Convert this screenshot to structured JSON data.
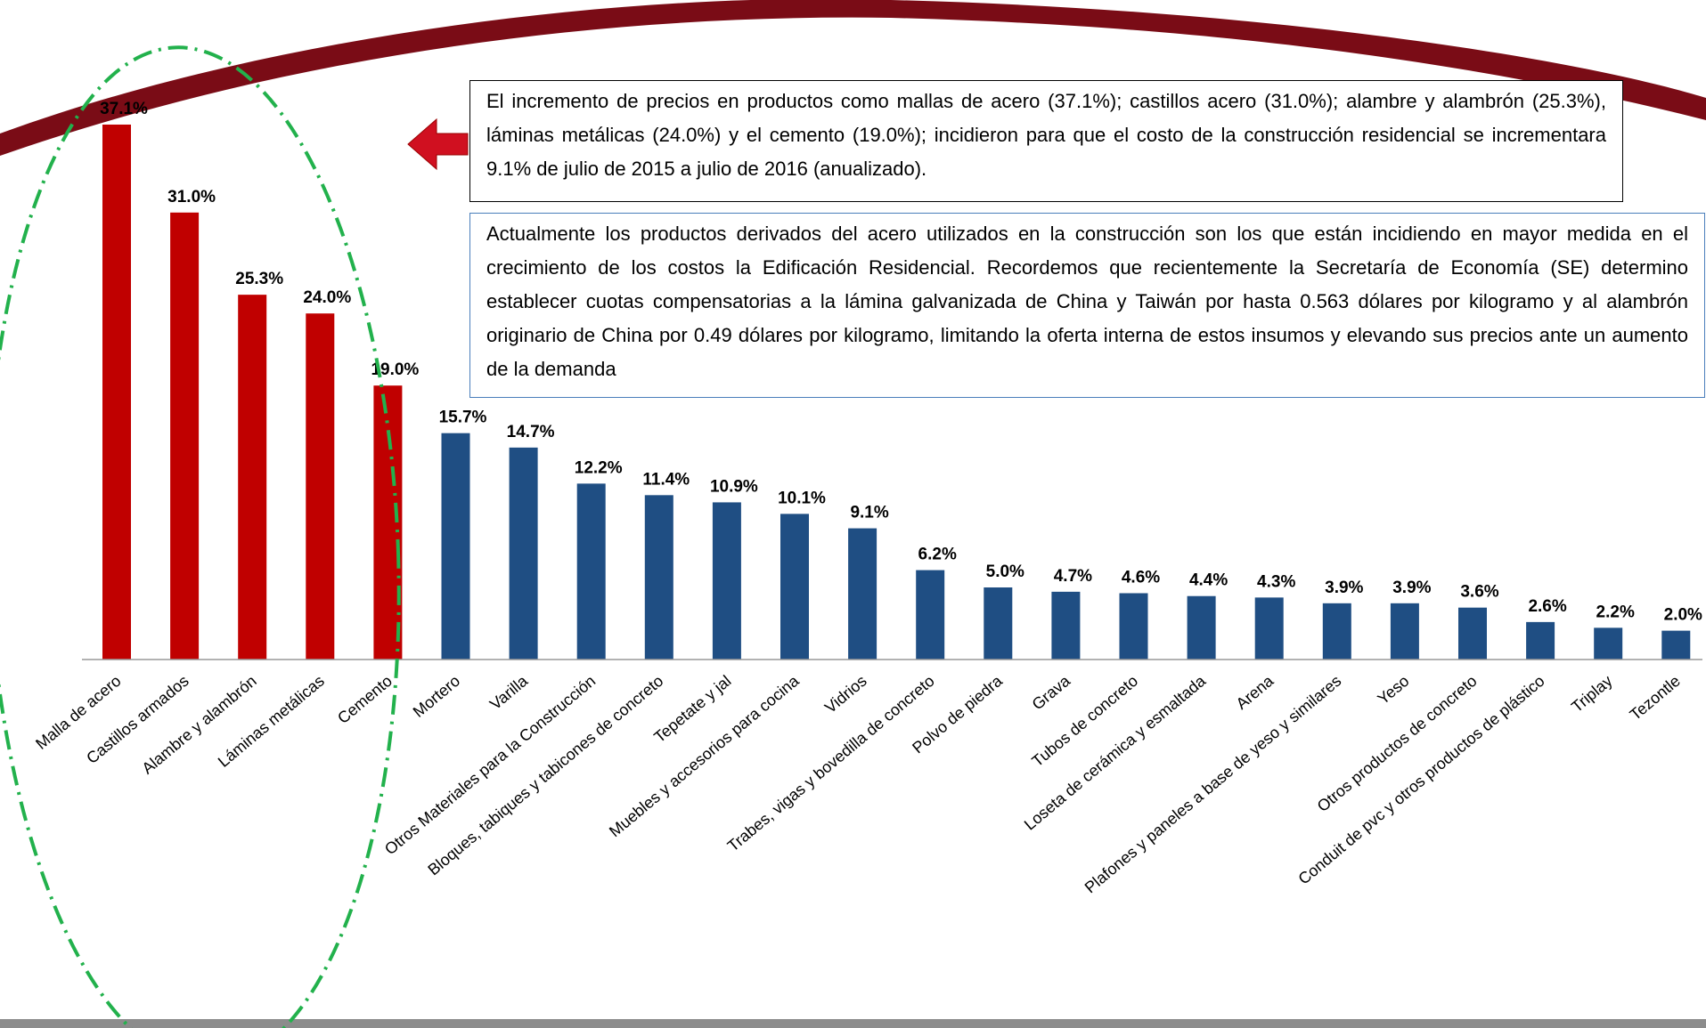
{
  "chart_data": {
    "type": "bar",
    "categories": [
      "Malla de acero",
      "Castillos armados",
      "Alambre y alambrón",
      "Láminas metálicas",
      "Cemento",
      "Mortero",
      "Varilla",
      "Otros Materiales para la Construcción",
      "Bloques, tabiques y tabicones de concreto",
      "Tepetate y jal",
      "Muebles y accesorios para cocina",
      "Vidrios",
      "Trabes, vigas y bovedilla de concreto",
      "Polvo de piedra",
      "Grava",
      "Tubos de concreto",
      "Loseta de cerámica y esmaltada",
      "Arena",
      "Plafones y paneles a base de yeso y similares",
      "Yeso",
      "Otros productos de concreto",
      "Conduit de pvc y otros productos de plástico",
      "Triplay",
      "Tezontle"
    ],
    "values": [
      37.1,
      31.0,
      25.3,
      24.0,
      19.0,
      15.7,
      14.7,
      12.2,
      11.4,
      10.9,
      10.1,
      9.1,
      6.2,
      5.0,
      4.7,
      4.6,
      4.4,
      4.3,
      3.9,
      3.9,
      3.6,
      2.6,
      2.2,
      2.0
    ],
    "value_labels": [
      "37.1%",
      "31.0%",
      "25.3%",
      "24.0%",
      "19.0%",
      "15.7%",
      "14.7%",
      "12.2%",
      "11.4%",
      "10.9%",
      "10.1%",
      "9.1%",
      "6.2%",
      "5.0%",
      "4.7%",
      "4.6%",
      "4.4%",
      "4.3%",
      "3.9%",
      "3.9%",
      "3.6%",
      "2.6%",
      "2.2%",
      "2.0%"
    ],
    "colors": [
      "#c00000",
      "#c00000",
      "#c00000",
      "#c00000",
      "#c00000",
      "#1f4e83",
      "#1f4e83",
      "#1f4e83",
      "#1f4e83",
      "#1f4e83",
      "#1f4e83",
      "#1f4e83",
      "#1f4e83",
      "#1f4e83",
      "#1f4e83",
      "#1f4e83",
      "#1f4e83",
      "#1f4e83",
      "#1f4e83",
      "#1f4e83",
      "#1f4e83",
      "#1f4e83",
      "#1f4e83",
      "#1f4e83"
    ],
    "ylim": [
      0,
      40
    ],
    "annotations": [
      "El incremento de precios en productos como mallas de acero (37.1%); castillos acero (31.0%); alambre y alambrón (25.3%), láminas metálicas (24.0%) y el cemento (19.0%);  incidieron para que el costo de la construcción residencial se incrementara 9.1% de julio de 2015 a julio de 2016 (anualizado).",
      "Actualmente los productos derivados del acero utilizados en la construcción son los que están incidiendo en mayor medida en el crecimiento de los costos la Edificación Residencial. Recordemos que recientemente la Secretaría de Economía (SE) determino establecer cuotas compensatorias a la lámina galvanizada de China y Taiwán por hasta 0.563 dólares por kilogramo y al alambrón originario de China por 0.49 dólares por kilogramo, limitando la oferta interna de estos insumos y elevando sus precios ante un aumento de la demanda"
    ]
  }
}
